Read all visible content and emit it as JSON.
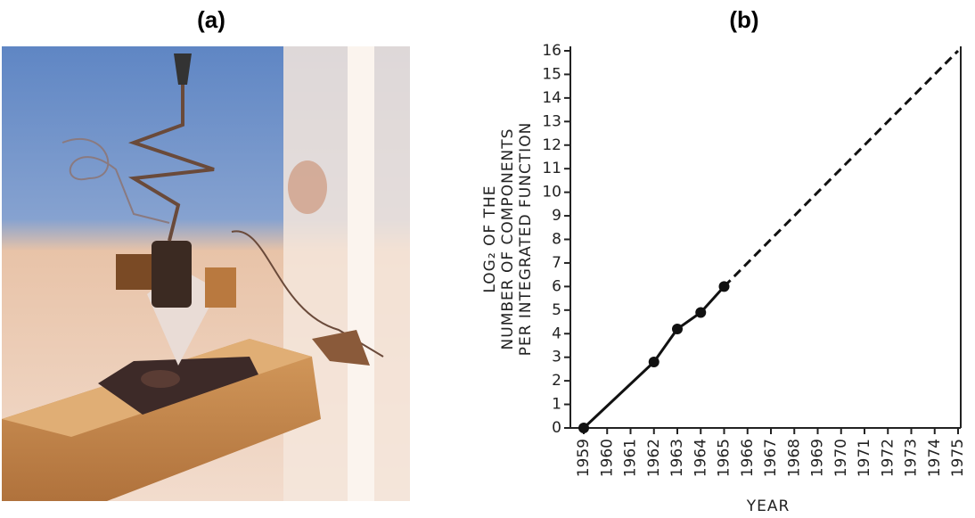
{
  "panel_labels": [
    "(a)",
    "(b)"
  ],
  "chart_data": {
    "type": "line",
    "ylabel": [
      "LOG₂ OF THE",
      "NUMBER OF COMPONENTS",
      "PER INTEGRATED FUNCTION"
    ],
    "xlabel": "YEAR",
    "xlim": [
      1959,
      1975
    ],
    "xticks": [
      1959,
      1960,
      1961,
      1962,
      1963,
      1964,
      1965,
      1966,
      1967,
      1968,
      1969,
      1970,
      1971,
      1972,
      1973,
      1974,
      1975
    ],
    "ylim": [
      0,
      16
    ],
    "yticks": [
      0,
      1,
      2,
      3,
      4,
      5,
      6,
      7,
      8,
      9,
      10,
      11,
      12,
      13,
      14,
      15,
      16
    ],
    "series": [
      {
        "color": "#111111",
        "style": "solid",
        "markers": true,
        "x": [
          1959,
          1962,
          1963,
          1964,
          1965
        ],
        "values": [
          0,
          2.8,
          4.2,
          4.9,
          6
        ]
      },
      {
        "color": "#111111",
        "style": "dashed",
        "markers": false,
        "x": [
          1965,
          1975
        ],
        "values": [
          6,
          16
        ]
      }
    ]
  }
}
